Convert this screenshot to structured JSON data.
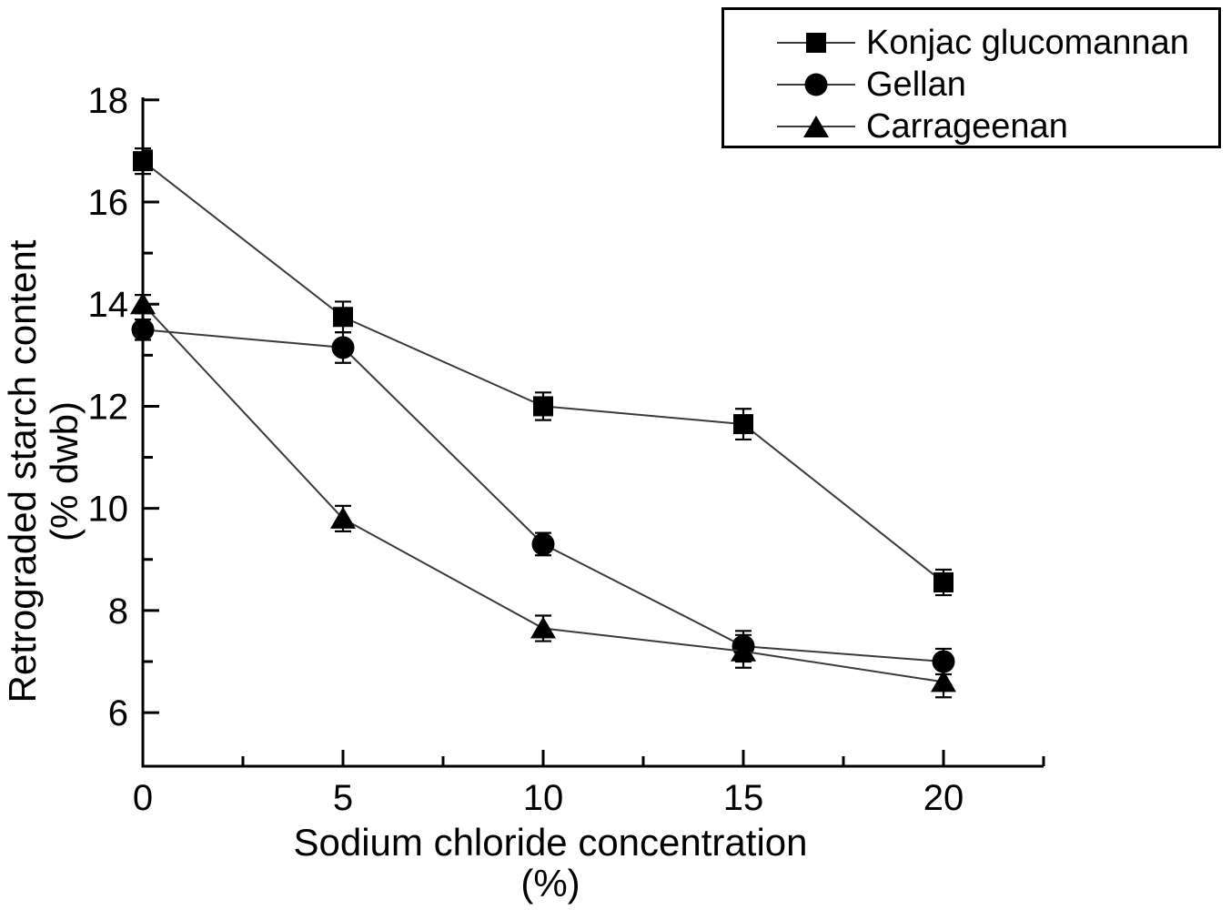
{
  "figure": {
    "background": "#ffffff",
    "ink_color": "#000000",
    "line_color": "#3a3a3a"
  },
  "chart_data": {
    "type": "line",
    "title": "",
    "xlabel_line1": "Sodium chloride concentration",
    "xlabel_line2": "(%)",
    "ylabel_line1": "Retrograded starch content",
    "ylabel_line2": "(% dwb)",
    "x": [
      0,
      5,
      10,
      15,
      20
    ],
    "xlim": [
      0,
      22.5
    ],
    "ylim": [
      4.95,
      18.05
    ],
    "x_major_ticks": [
      0,
      5,
      10,
      15,
      20
    ],
    "x_minor_ticks": [
      2.5,
      7.5,
      12.5,
      17.5,
      22.5
    ],
    "y_major_ticks": [
      6,
      8,
      10,
      12,
      14,
      16,
      18
    ],
    "y_minor_ticks": [
      7,
      9,
      11,
      13,
      15,
      17
    ],
    "grid": false,
    "legend_position": "top-right",
    "series": [
      {
        "name": "Konjac glucomannan",
        "marker": "square",
        "values": [
          16.8,
          13.75,
          12.0,
          11.65,
          8.55
        ],
        "errors": [
          0.25,
          0.3,
          0.27,
          0.3,
          0.25
        ]
      },
      {
        "name": "Gellan",
        "marker": "circle",
        "values": [
          13.5,
          13.15,
          9.3,
          7.3,
          7.0
        ],
        "errors": [
          0.2,
          0.3,
          0.22,
          0.3,
          0.25
        ]
      },
      {
        "name": "Carrageenan",
        "marker": "triangle",
        "values": [
          14.0,
          9.8,
          7.65,
          7.2,
          6.6
        ],
        "errors": [
          0.18,
          0.25,
          0.25,
          0.32,
          0.3
        ]
      }
    ]
  }
}
